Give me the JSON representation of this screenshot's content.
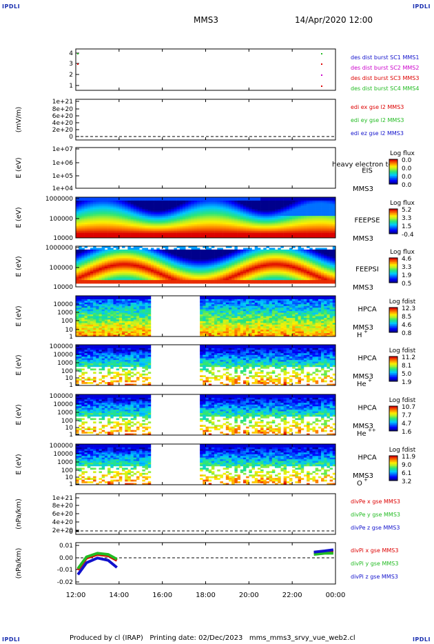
{
  "corner_label": "IPDLI",
  "header": {
    "spacecraft": "MMS3",
    "datetime": "14/Apr/2020 12:00"
  },
  "footer": {
    "producer": "Produced by cl (IRAP)",
    "printing": "Printing date: 02/Dec/2023",
    "file": "mms_mms3_srvy_vue_web2.cl"
  },
  "time_axis": {
    "ticks": [
      "12:00",
      "14:00",
      "16:00",
      "18:00",
      "20:00",
      "22:00",
      "00:00"
    ]
  },
  "colors": {
    "red": "#dd0000",
    "green": "#22bb22",
    "blue": "#1111cc",
    "magenta": "#cc00cc",
    "dash": "#000000"
  },
  "panels": {
    "p1": {
      "yticks": [
        "4",
        "3",
        "2",
        "1"
      ],
      "legend": [
        {
          "text": "des dist burst SC1 MMS1",
          "color": "#1111cc"
        },
        {
          "text": "des dist burst SC2 MMS2",
          "color": "#cc00cc"
        },
        {
          "text": "des dist burst SC3 MMS3",
          "color": "#dd0000"
        },
        {
          "text": "des dist burst SC4 MMS4",
          "color": "#22bb22"
        }
      ]
    },
    "p2": {
      "ylabel": "(mV/m)",
      "yticks": [
        "1e+21",
        "8e+20",
        "6e+20",
        "4e+20",
        "2e+20",
        "0"
      ],
      "legend": [
        {
          "text": "edi ex gse l2 MMS3",
          "color": "#dd0000"
        },
        {
          "text": "edi ey gse l2 MMS3",
          "color": "#22bb22"
        },
        {
          "text": "edi ez gse l2 MMS3",
          "color": "#1111cc"
        }
      ]
    },
    "p3": {
      "ylabel": "E (eV)",
      "yticks": [
        "1e+07",
        "1e+06",
        "1e+05",
        "1e+04"
      ],
      "inst": "EIS",
      "sub": "MMS3",
      "overflow": "heavy electron to",
      "cbar_title": "Log flux",
      "cbar_ticks": [
        "0.0",
        "0.0",
        "0.0",
        "0.0"
      ]
    },
    "p4": {
      "ylabel": "E (eV)",
      "yticks": [
        "1000000",
        "100000",
        "10000"
      ],
      "inst": "FEEPSE",
      "sub": "MMS3",
      "cbar_title": "Log flux",
      "cbar_ticks": [
        "5.2",
        "3.3",
        "1.5",
        "-0.4"
      ]
    },
    "p5": {
      "ylabel": "E (eV)",
      "yticks": [
        "1000000",
        "100000",
        "10000"
      ],
      "inst": "FEEPSI",
      "sub": "MMS3",
      "cbar_title": "Log flux",
      "cbar_ticks": [
        "4.6",
        "3.3",
        "1.9",
        "0.5"
      ]
    },
    "p6": {
      "ylabel": "E (eV)",
      "yticks": [
        "10000",
        "1000",
        "100",
        "10",
        "1"
      ],
      "inst": "HPCA",
      "sub": "MMS3",
      "species": "H",
      "charge": "+",
      "cbar_title": "Log fdist",
      "cbar_ticks": [
        "12.3",
        "8.5",
        "4.6",
        "0.8"
      ]
    },
    "p7": {
      "ylabel": "E (eV)",
      "yticks": [
        "100000",
        "10000",
        "1000",
        "100",
        "10",
        "1"
      ],
      "inst": "HPCA",
      "sub": "MMS3",
      "species": "He",
      "charge": "+",
      "cbar_title": "Log fdist",
      "cbar_ticks": [
        "11.2",
        "8.1",
        "5.0",
        "1.9"
      ]
    },
    "p8": {
      "ylabel": "E (eV)",
      "yticks": [
        "100000",
        "10000",
        "1000",
        "100",
        "10",
        "1"
      ],
      "inst": "HPCA",
      "sub": "MMS3",
      "species": "He",
      "charge": "++",
      "cbar_title": "Log fdist",
      "cbar_ticks": [
        "10.7",
        "7.7",
        "4.7",
        "1.6"
      ]
    },
    "p9": {
      "ylabel": "E (eV)",
      "yticks": [
        "100000",
        "10000",
        "1000",
        "100",
        "10",
        "1"
      ],
      "inst": "HPCA",
      "sub": "MMS3",
      "species": "O",
      "charge": "+",
      "cbar_title": "Log fdist",
      "cbar_ticks": [
        "11.9",
        "9.0",
        "6.1",
        "3.2"
      ]
    },
    "p10": {
      "ylabel": "(nPa/km)",
      "yticks": [
        "1e+21",
        "8e+20",
        "6e+20",
        "4e+20",
        "2e+20",
        "0"
      ],
      "legend": [
        {
          "text": "divPe x gse MMS3",
          "color": "#dd0000"
        },
        {
          "text": "divPe y gse MMS3",
          "color": "#22bb22"
        },
        {
          "text": "divPe z gse MMS3",
          "color": "#1111cc"
        }
      ]
    },
    "p11": {
      "ylabel": "(nPa/km)",
      "yticks": [
        "0.01",
        "0.00",
        "-0.01",
        "-0.02"
      ],
      "legend": [
        {
          "text": "divPi x gse MMS3",
          "color": "#dd0000"
        },
        {
          "text": "divPi y gse MMS3",
          "color": "#22bb22"
        },
        {
          "text": "divPi z gse MMS3",
          "color": "#1111cc"
        }
      ]
    }
  },
  "chart_data": {
    "type": "line",
    "title": "MMS3 14/Apr/2020 12:00",
    "x_unit": "UT hours",
    "xlim": [
      12,
      24
    ],
    "divPi_series": [
      {
        "name": "divPi x gse MMS3",
        "x": [
          12.1,
          12.5,
          13.0,
          13.5,
          13.9,
          23.0,
          23.5,
          23.9
        ],
        "values": [
          -0.01,
          0.0,
          0.003,
          0.002,
          -0.002,
          0.004,
          0.005,
          0.005
        ]
      },
      {
        "name": "divPi y gse MMS3",
        "x": [
          12.1,
          12.5,
          13.0,
          13.5,
          13.9,
          23.0,
          23.5,
          23.9
        ],
        "values": [
          -0.009,
          0.001,
          0.004,
          0.003,
          -0.001,
          0.003,
          0.004,
          0.004
        ]
      },
      {
        "name": "divPi z gse MMS3",
        "x": [
          12.1,
          12.5,
          13.0,
          13.5,
          13.9,
          23.0,
          23.5,
          23.9
        ],
        "values": [
          -0.014,
          -0.004,
          0.0,
          -0.002,
          -0.008,
          0.005,
          0.006,
          0.007
        ]
      }
    ],
    "divPi_ylim": [
      -0.022,
      0.013
    ],
    "hpca_data_gaps": [
      [
        15.5,
        17.8
      ]
    ]
  }
}
